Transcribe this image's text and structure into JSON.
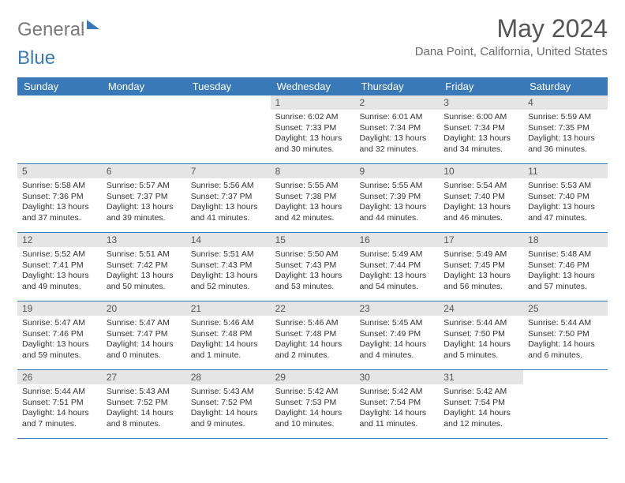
{
  "brand": {
    "part1": "General",
    "part2": "Blue"
  },
  "title": "May 2024",
  "location": "Dana Point, California, United States",
  "day_headers": [
    "Sunday",
    "Monday",
    "Tuesday",
    "Wednesday",
    "Thursday",
    "Friday",
    "Saturday"
  ],
  "colors": {
    "header_bg": "#3a79b7",
    "header_text": "#ffffff",
    "daynum_bg": "#e5e5e5",
    "body_text": "#333333",
    "brand_gray": "#7a7a7a",
    "brand_blue": "#3a79b7"
  },
  "grid": [
    [
      null,
      null,
      null,
      {
        "n": "1",
        "sr": "6:02 AM",
        "ss": "7:33 PM",
        "dl": "13 hours and 30 minutes."
      },
      {
        "n": "2",
        "sr": "6:01 AM",
        "ss": "7:34 PM",
        "dl": "13 hours and 32 minutes."
      },
      {
        "n": "3",
        "sr": "6:00 AM",
        "ss": "7:34 PM",
        "dl": "13 hours and 34 minutes."
      },
      {
        "n": "4",
        "sr": "5:59 AM",
        "ss": "7:35 PM",
        "dl": "13 hours and 36 minutes."
      }
    ],
    [
      {
        "n": "5",
        "sr": "5:58 AM",
        "ss": "7:36 PM",
        "dl": "13 hours and 37 minutes."
      },
      {
        "n": "6",
        "sr": "5:57 AM",
        "ss": "7:37 PM",
        "dl": "13 hours and 39 minutes."
      },
      {
        "n": "7",
        "sr": "5:56 AM",
        "ss": "7:37 PM",
        "dl": "13 hours and 41 minutes."
      },
      {
        "n": "8",
        "sr": "5:55 AM",
        "ss": "7:38 PM",
        "dl": "13 hours and 42 minutes."
      },
      {
        "n": "9",
        "sr": "5:55 AM",
        "ss": "7:39 PM",
        "dl": "13 hours and 44 minutes."
      },
      {
        "n": "10",
        "sr": "5:54 AM",
        "ss": "7:40 PM",
        "dl": "13 hours and 46 minutes."
      },
      {
        "n": "11",
        "sr": "5:53 AM",
        "ss": "7:40 PM",
        "dl": "13 hours and 47 minutes."
      }
    ],
    [
      {
        "n": "12",
        "sr": "5:52 AM",
        "ss": "7:41 PM",
        "dl": "13 hours and 49 minutes."
      },
      {
        "n": "13",
        "sr": "5:51 AM",
        "ss": "7:42 PM",
        "dl": "13 hours and 50 minutes."
      },
      {
        "n": "14",
        "sr": "5:51 AM",
        "ss": "7:43 PM",
        "dl": "13 hours and 52 minutes."
      },
      {
        "n": "15",
        "sr": "5:50 AM",
        "ss": "7:43 PM",
        "dl": "13 hours and 53 minutes."
      },
      {
        "n": "16",
        "sr": "5:49 AM",
        "ss": "7:44 PM",
        "dl": "13 hours and 54 minutes."
      },
      {
        "n": "17",
        "sr": "5:49 AM",
        "ss": "7:45 PM",
        "dl": "13 hours and 56 minutes."
      },
      {
        "n": "18",
        "sr": "5:48 AM",
        "ss": "7:46 PM",
        "dl": "13 hours and 57 minutes."
      }
    ],
    [
      {
        "n": "19",
        "sr": "5:47 AM",
        "ss": "7:46 PM",
        "dl": "13 hours and 59 minutes."
      },
      {
        "n": "20",
        "sr": "5:47 AM",
        "ss": "7:47 PM",
        "dl": "14 hours and 0 minutes."
      },
      {
        "n": "21",
        "sr": "5:46 AM",
        "ss": "7:48 PM",
        "dl": "14 hours and 1 minute."
      },
      {
        "n": "22",
        "sr": "5:46 AM",
        "ss": "7:48 PM",
        "dl": "14 hours and 2 minutes."
      },
      {
        "n": "23",
        "sr": "5:45 AM",
        "ss": "7:49 PM",
        "dl": "14 hours and 4 minutes."
      },
      {
        "n": "24",
        "sr": "5:44 AM",
        "ss": "7:50 PM",
        "dl": "14 hours and 5 minutes."
      },
      {
        "n": "25",
        "sr": "5:44 AM",
        "ss": "7:50 PM",
        "dl": "14 hours and 6 minutes."
      }
    ],
    [
      {
        "n": "26",
        "sr": "5:44 AM",
        "ss": "7:51 PM",
        "dl": "14 hours and 7 minutes."
      },
      {
        "n": "27",
        "sr": "5:43 AM",
        "ss": "7:52 PM",
        "dl": "14 hours and 8 minutes."
      },
      {
        "n": "28",
        "sr": "5:43 AM",
        "ss": "7:52 PM",
        "dl": "14 hours and 9 minutes."
      },
      {
        "n": "29",
        "sr": "5:42 AM",
        "ss": "7:53 PM",
        "dl": "14 hours and 10 minutes."
      },
      {
        "n": "30",
        "sr": "5:42 AM",
        "ss": "7:54 PM",
        "dl": "14 hours and 11 minutes."
      },
      {
        "n": "31",
        "sr": "5:42 AM",
        "ss": "7:54 PM",
        "dl": "14 hours and 12 minutes."
      },
      null
    ]
  ],
  "labels": {
    "sunrise": "Sunrise:",
    "sunset": "Sunset:",
    "daylight": "Daylight:"
  }
}
